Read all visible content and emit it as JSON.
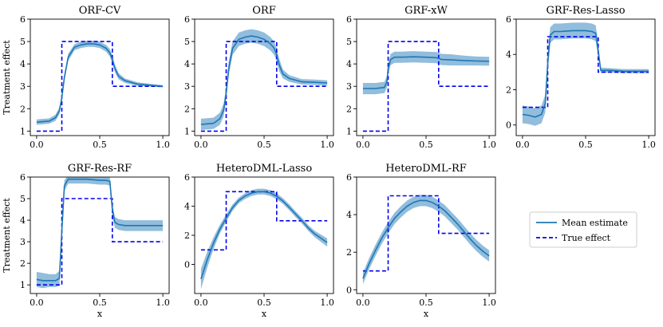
{
  "legend": {
    "mean_label": "Mean estimate",
    "true_label": "True effect",
    "mean_color": "#1f77b4",
    "band_color": "#7fb2d6",
    "true_color": "#0000ee"
  },
  "chart_data": [
    {
      "type": "line",
      "title": "ORF-CV",
      "xlabel": "",
      "ylabel": "Treatment effect",
      "xlim": [
        0,
        1
      ],
      "ylim": [
        0.8,
        6
      ],
      "xticks": [
        "0.0",
        "0.5",
        "1.0"
      ],
      "yticks": [
        "1",
        "2",
        "3",
        "4",
        "5",
        "6"
      ],
      "series": [
        {
          "name": "Mean estimate",
          "x": [
            0,
            0.1,
            0.15,
            0.18,
            0.2,
            0.22,
            0.25,
            0.3,
            0.35,
            0.4,
            0.45,
            0.5,
            0.55,
            0.58,
            0.6,
            0.62,
            0.65,
            0.7,
            0.8,
            0.9,
            1.0
          ],
          "y": [
            1.4,
            1.45,
            1.6,
            1.9,
            2.5,
            3.4,
            4.3,
            4.75,
            4.85,
            4.9,
            4.9,
            4.85,
            4.7,
            4.5,
            4.2,
            3.8,
            3.45,
            3.25,
            3.1,
            3.05,
            3.0
          ],
          "band": [
            0.12,
            0.12,
            0.14,
            0.15,
            0.16,
            0.16,
            0.16,
            0.14,
            0.14,
            0.14,
            0.14,
            0.14,
            0.15,
            0.17,
            0.18,
            0.17,
            0.14,
            0.1,
            0.08,
            0.06,
            0.05
          ]
        },
        {
          "name": "True effect",
          "x": [
            0,
            0.2,
            0.2,
            0.6,
            0.6,
            1.0
          ],
          "y": [
            1,
            1,
            5,
            5,
            3,
            3
          ]
        }
      ]
    },
    {
      "type": "line",
      "title": "ORF",
      "xlabel": "",
      "ylabel": "",
      "xlim": [
        0,
        1
      ],
      "ylim": [
        0.8,
        6
      ],
      "xticks": [
        "0.0",
        "0.5",
        "1.0"
      ],
      "yticks": [
        "1",
        "2",
        "3",
        "4",
        "5",
        "6"
      ],
      "series": [
        {
          "name": "Mean estimate",
          "x": [
            0,
            0.1,
            0.15,
            0.18,
            0.2,
            0.22,
            0.25,
            0.3,
            0.35,
            0.4,
            0.45,
            0.5,
            0.55,
            0.58,
            0.6,
            0.62,
            0.65,
            0.7,
            0.8,
            0.9,
            1.0
          ],
          "y": [
            1.3,
            1.35,
            1.55,
            1.95,
            2.7,
            3.8,
            4.7,
            5.1,
            5.2,
            5.25,
            5.2,
            5.1,
            4.9,
            4.7,
            4.4,
            3.95,
            3.55,
            3.35,
            3.2,
            3.18,
            3.15
          ],
          "band": [
            0.25,
            0.25,
            0.27,
            0.28,
            0.3,
            0.3,
            0.3,
            0.3,
            0.3,
            0.3,
            0.3,
            0.3,
            0.3,
            0.3,
            0.3,
            0.28,
            0.2,
            0.15,
            0.12,
            0.12,
            0.12
          ]
        },
        {
          "name": "True effect",
          "x": [
            0,
            0.2,
            0.2,
            0.6,
            0.6,
            1.0
          ],
          "y": [
            1,
            1,
            5,
            5,
            3,
            3
          ]
        }
      ]
    },
    {
      "type": "line",
      "title": "GRF-xW",
      "xlabel": "",
      "ylabel": "",
      "xlim": [
        0,
        1
      ],
      "ylim": [
        0.8,
        6
      ],
      "xticks": [
        "0.0",
        "0.5",
        "1.0"
      ],
      "yticks": [
        "1",
        "2",
        "3",
        "4",
        "5",
        "6"
      ],
      "series": [
        {
          "name": "Mean estimate",
          "x": [
            0,
            0.1,
            0.17,
            0.19,
            0.2,
            0.22,
            0.25,
            0.3,
            0.4,
            0.5,
            0.58,
            0.6,
            0.62,
            0.7,
            0.8,
            0.9,
            1.0
          ],
          "y": [
            2.9,
            2.9,
            2.95,
            3.2,
            3.8,
            4.2,
            4.3,
            4.3,
            4.32,
            4.3,
            4.28,
            4.25,
            4.2,
            4.18,
            4.15,
            4.13,
            4.12
          ],
          "band": [
            0.25,
            0.25,
            0.25,
            0.25,
            0.25,
            0.25,
            0.25,
            0.25,
            0.25,
            0.25,
            0.25,
            0.25,
            0.25,
            0.25,
            0.22,
            0.2,
            0.2
          ]
        },
        {
          "name": "True effect",
          "x": [
            0,
            0.2,
            0.2,
            0.6,
            0.6,
            1.0
          ],
          "y": [
            1,
            1,
            5,
            5,
            3,
            3
          ]
        }
      ]
    },
    {
      "type": "line",
      "title": "GRF-Res-Lasso",
      "xlabel": "",
      "ylabel": "",
      "xlim": [
        0,
        1
      ],
      "ylim": [
        -0.6,
        6
      ],
      "xticks": [
        "0.0",
        "0.5",
        "1.0"
      ],
      "yticks": [
        "0",
        "2",
        "4",
        "6"
      ],
      "ytick_values": [
        0,
        2,
        4,
        6
      ],
      "series": [
        {
          "name": "Mean estimate",
          "x": [
            0,
            0.05,
            0.1,
            0.15,
            0.18,
            0.2,
            0.22,
            0.25,
            0.3,
            0.4,
            0.5,
            0.55,
            0.58,
            0.6,
            0.62,
            0.7,
            0.8,
            0.9,
            1.0
          ],
          "y": [
            0.6,
            0.55,
            0.45,
            0.6,
            1.2,
            3.5,
            5.1,
            5.3,
            5.3,
            5.35,
            5.35,
            5.3,
            5.2,
            4.2,
            3.1,
            3.1,
            3.05,
            3.05,
            3.05
          ],
          "band": [
            0.5,
            0.5,
            0.5,
            0.5,
            0.5,
            0.5,
            0.45,
            0.45,
            0.45,
            0.45,
            0.45,
            0.45,
            0.45,
            0.4,
            0.15,
            0.12,
            0.12,
            0.12,
            0.12
          ]
        },
        {
          "name": "True effect",
          "x": [
            0,
            0.2,
            0.2,
            0.6,
            0.6,
            1.0
          ],
          "y": [
            1,
            1,
            5,
            5,
            3,
            3
          ]
        }
      ]
    },
    {
      "type": "line",
      "title": "GRF-Res-RF",
      "xlabel": "x",
      "ylabel": "Treatment effect",
      "xlim": [
        0,
        1
      ],
      "ylim": [
        0.6,
        6
      ],
      "xticks": [
        "0.0",
        "0.5",
        "1.0"
      ],
      "yticks": [
        "1",
        "2",
        "3",
        "4",
        "5",
        "6"
      ],
      "series": [
        {
          "name": "Mean estimate",
          "x": [
            0,
            0.05,
            0.1,
            0.15,
            0.18,
            0.2,
            0.22,
            0.25,
            0.3,
            0.4,
            0.5,
            0.55,
            0.58,
            0.6,
            0.62,
            0.65,
            0.7,
            0.8,
            0.9,
            1.0
          ],
          "y": [
            1.25,
            1.2,
            1.2,
            1.2,
            1.3,
            3.5,
            5.6,
            5.9,
            5.9,
            5.9,
            5.85,
            5.85,
            5.8,
            4.5,
            3.9,
            3.8,
            3.75,
            3.75,
            3.75,
            3.75
          ],
          "band": [
            0.35,
            0.35,
            0.3,
            0.3,
            0.35,
            0.4,
            0.25,
            0.2,
            0.2,
            0.2,
            0.2,
            0.2,
            0.2,
            0.3,
            0.25,
            0.25,
            0.25,
            0.25,
            0.25,
            0.25
          ]
        },
        {
          "name": "True effect",
          "x": [
            0,
            0.2,
            0.2,
            0.6,
            0.6,
            1.0
          ],
          "y": [
            1,
            1,
            5,
            5,
            3,
            3
          ]
        }
      ]
    },
    {
      "type": "line",
      "title": "HeteroDML-Lasso",
      "xlabel": "x",
      "ylabel": "",
      "xlim": [
        0,
        1
      ],
      "ylim": [
        -2.0,
        6
      ],
      "xticks": [
        "0.0",
        "0.5",
        "1.0"
      ],
      "yticks": [
        "0",
        "2",
        "4",
        "6"
      ],
      "ytick_values": [
        0,
        2,
        4,
        6
      ],
      "series": [
        {
          "name": "Mean estimate",
          "x": [
            0,
            0.05,
            0.1,
            0.15,
            0.2,
            0.25,
            0.3,
            0.35,
            0.4,
            0.45,
            0.5,
            0.55,
            0.6,
            0.65,
            0.7,
            0.75,
            0.8,
            0.85,
            0.9,
            0.95,
            1.0
          ],
          "y": [
            -1.0,
            0.33,
            1.47,
            2.42,
            3.18,
            3.9,
            4.4,
            4.7,
            4.9,
            5.0,
            5.0,
            4.9,
            4.68,
            4.35,
            3.92,
            3.45,
            3.0,
            2.5,
            2.1,
            1.8,
            1.5
          ],
          "band": [
            0.7,
            0.55,
            0.4,
            0.3,
            0.25,
            0.22,
            0.2,
            0.2,
            0.2,
            0.2,
            0.2,
            0.2,
            0.2,
            0.2,
            0.2,
            0.2,
            0.2,
            0.2,
            0.22,
            0.25,
            0.28
          ]
        },
        {
          "name": "True effect",
          "x": [
            0,
            0.2,
            0.2,
            0.6,
            0.6,
            1.0
          ],
          "y": [
            1,
            1,
            5,
            5,
            3,
            3
          ]
        }
      ]
    },
    {
      "type": "line",
      "title": "HeteroDML-RF",
      "xlabel": "x",
      "ylabel": "",
      "xlim": [
        0,
        1
      ],
      "ylim": [
        -0.2,
        6
      ],
      "xticks": [
        "0.0",
        "0.5",
        "1.0"
      ],
      "yticks": [
        "0",
        "2",
        "4",
        "6"
      ],
      "ytick_values": [
        0,
        2,
        4,
        6
      ],
      "series": [
        {
          "name": "Mean estimate",
          "x": [
            0,
            0.05,
            0.1,
            0.15,
            0.2,
            0.25,
            0.3,
            0.35,
            0.4,
            0.45,
            0.5,
            0.55,
            0.6,
            0.65,
            0.7,
            0.75,
            0.8,
            0.85,
            0.9,
            0.95,
            1.0
          ],
          "y": [
            0.6,
            1.4,
            2.1,
            2.75,
            3.3,
            3.8,
            4.15,
            4.45,
            4.65,
            4.75,
            4.75,
            4.65,
            4.45,
            4.2,
            3.85,
            3.5,
            3.1,
            2.7,
            2.35,
            2.05,
            1.8
          ],
          "band": [
            0.3,
            0.3,
            0.3,
            0.3,
            0.3,
            0.3,
            0.3,
            0.3,
            0.3,
            0.3,
            0.3,
            0.3,
            0.3,
            0.3,
            0.3,
            0.3,
            0.3,
            0.3,
            0.3,
            0.3,
            0.3
          ]
        },
        {
          "name": "True effect",
          "x": [
            0,
            0.2,
            0.2,
            0.6,
            0.6,
            1.0
          ],
          "y": [
            1,
            1,
            5,
            5,
            3,
            3
          ]
        }
      ]
    }
  ]
}
